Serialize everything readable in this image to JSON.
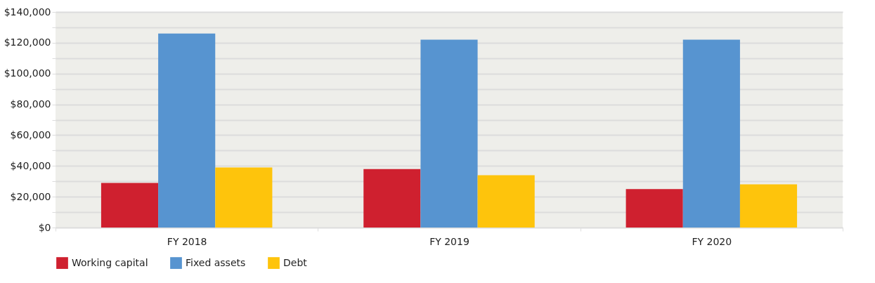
{
  "chart_data": {
    "type": "bar",
    "categories": [
      "FY 2018",
      "FY 2019",
      "FY 2020"
    ],
    "series": [
      {
        "name": "Working capital",
        "color": "#cf202f",
        "values": [
          29000,
          38000,
          25000
        ]
      },
      {
        "name": "Fixed assets",
        "color": "#5794d0",
        "values": [
          126000,
          122000,
          122000
        ]
      },
      {
        "name": "Debt",
        "color": "#fec40c",
        "values": [
          39000,
          34000,
          28000
        ]
      }
    ],
    "ylim": [
      0,
      140000
    ],
    "yticks": [
      {
        "value": 0,
        "label": "$0"
      },
      {
        "value": 10000,
        "label": null
      },
      {
        "value": 20000,
        "label": "$20,000"
      },
      {
        "value": 30000,
        "label": null
      },
      {
        "value": 40000,
        "label": "$40,000"
      },
      {
        "value": 50000,
        "label": null
      },
      {
        "value": 60000,
        "label": "$60,000"
      },
      {
        "value": 70000,
        "label": null
      },
      {
        "value": 80000,
        "label": "$80,000"
      },
      {
        "value": 90000,
        "label": null
      },
      {
        "value": 100000,
        "label": "$100,000"
      },
      {
        "value": 110000,
        "label": null
      },
      {
        "value": 120000,
        "label": "$120,000"
      },
      {
        "value": 130000,
        "label": null
      },
      {
        "value": 140000,
        "label": "$140,000"
      }
    ],
    "grid": true,
    "legend": "bottom"
  }
}
